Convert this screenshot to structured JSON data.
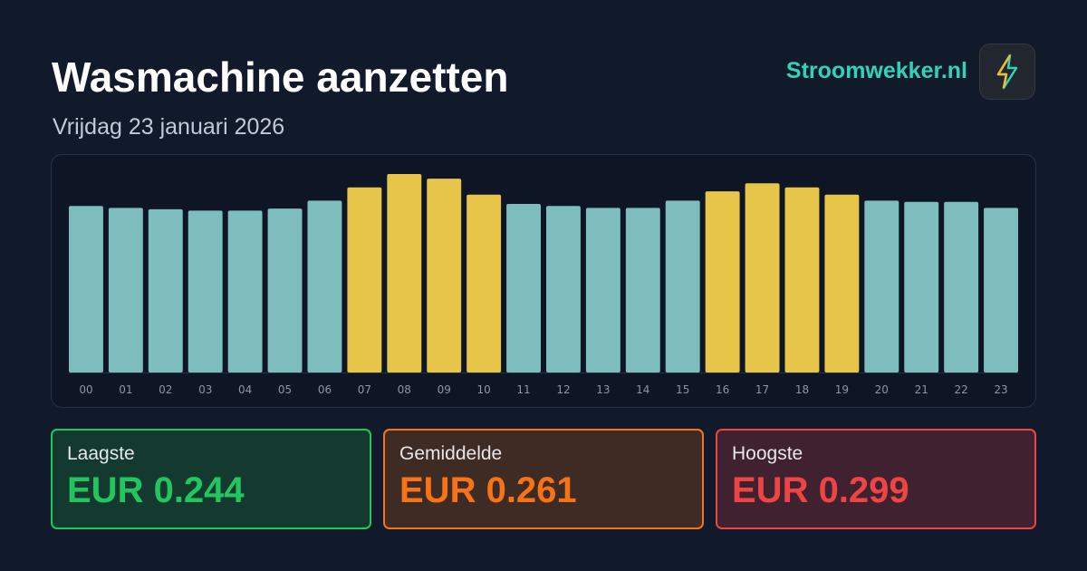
{
  "header": {
    "title": "Wasmachine aanzetten",
    "subtitle": "Vrijdag 23 januari 2026",
    "brand": "Stroomwekker.nl"
  },
  "chart_data": {
    "type": "bar",
    "categories": [
      "00",
      "01",
      "02",
      "03",
      "04",
      "05",
      "06",
      "07",
      "08",
      "09",
      "10",
      "11",
      "12",
      "13",
      "14",
      "15",
      "16",
      "17",
      "18",
      "19",
      "20",
      "21",
      "22",
      "23"
    ],
    "values": [
      0.251,
      0.248,
      0.246,
      0.244,
      0.244,
      0.247,
      0.259,
      0.279,
      0.299,
      0.292,
      0.268,
      0.254,
      0.251,
      0.248,
      0.248,
      0.259,
      0.273,
      0.285,
      0.279,
      0.268,
      0.259,
      0.257,
      0.257,
      0.248
    ],
    "colors": [
      "#7dbdbd",
      "#7dbdbd",
      "#7dbdbd",
      "#7dbdbd",
      "#7dbdbd",
      "#7dbdbd",
      "#7dbdbd",
      "#e6c548",
      "#e6c548",
      "#e6c548",
      "#e6c548",
      "#7dbdbd",
      "#7dbdbd",
      "#7dbdbd",
      "#7dbdbd",
      "#7dbdbd",
      "#e6c548",
      "#e6c548",
      "#e6c548",
      "#e6c548",
      "#7dbdbd",
      "#7dbdbd",
      "#7dbdbd",
      "#7dbdbd"
    ],
    "ylim": [
      0,
      0.31
    ]
  },
  "stats": [
    {
      "label": "Laagste",
      "value": "EUR 0.244"
    },
    {
      "label": "Gemiddelde",
      "value": "EUR 0.261"
    },
    {
      "label": "Hoogste",
      "value": "EUR 0.299"
    }
  ]
}
